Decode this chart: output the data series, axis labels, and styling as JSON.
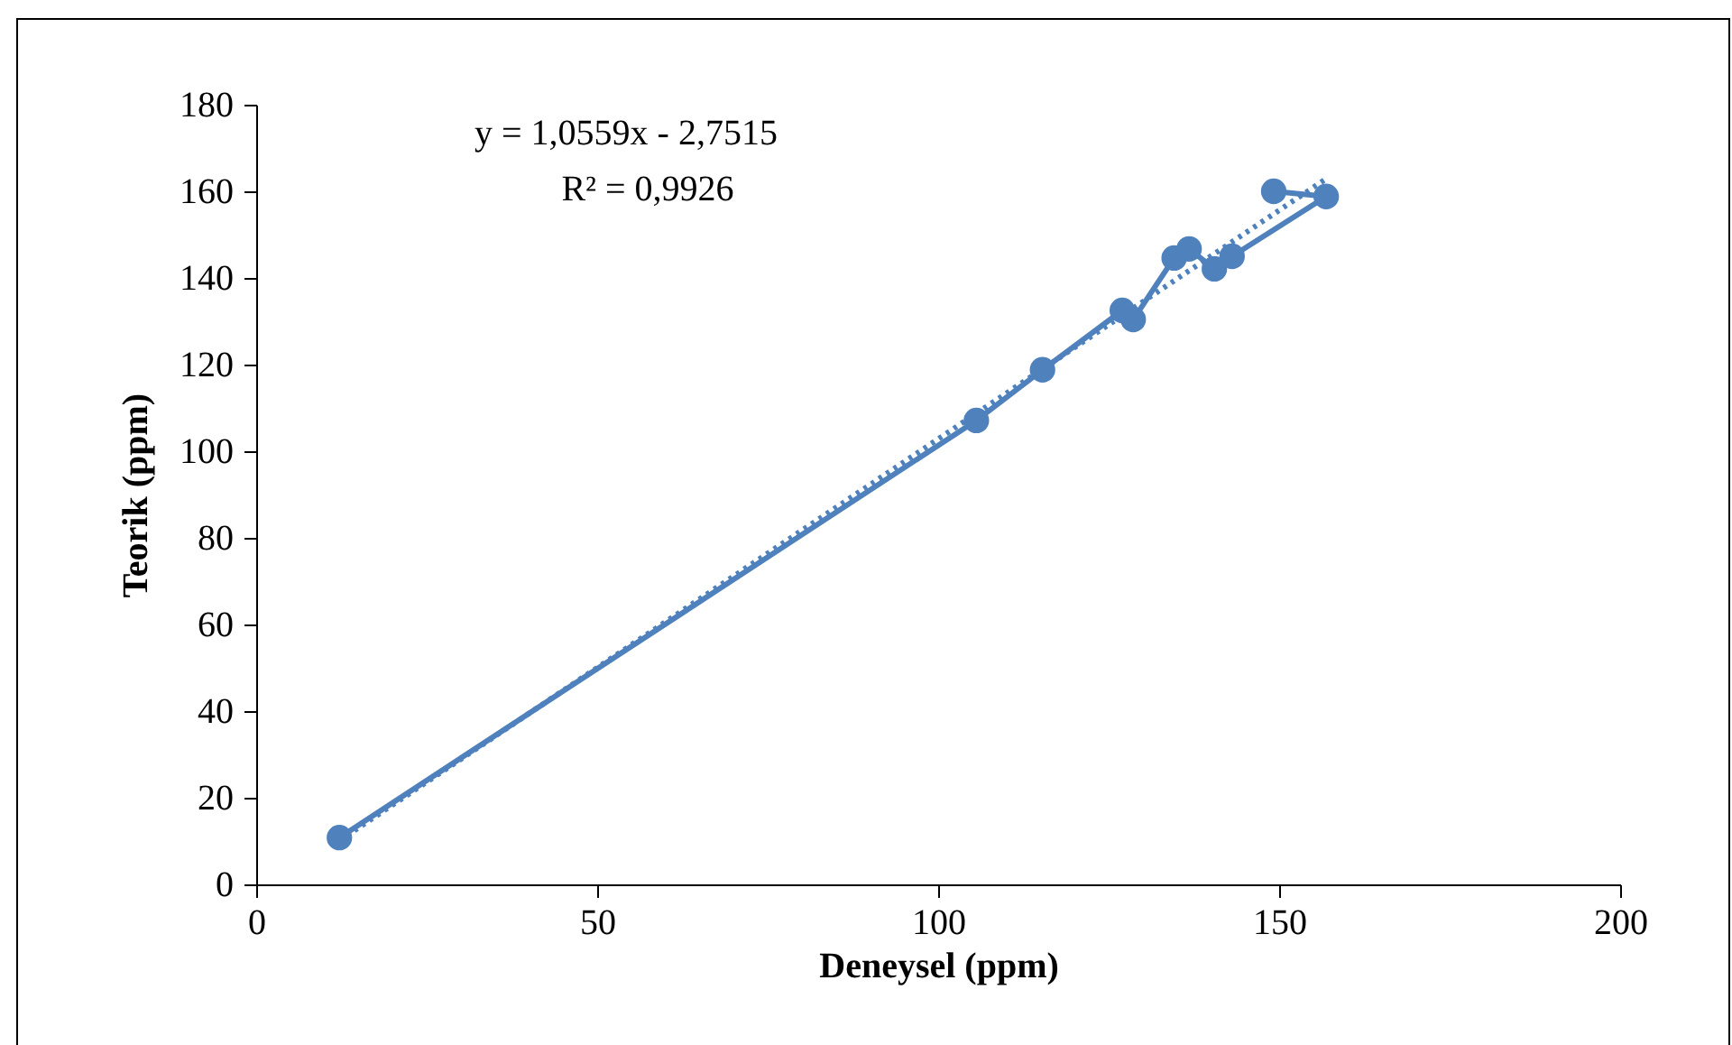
{
  "chart_data": {
    "type": "line",
    "xlabel": "Deneysel (ppm)",
    "ylabel": "Teorik (ppm)",
    "annotations": [
      "y = 1,0559x - 2,7515",
      "R² = 0,9926"
    ],
    "xlim": [
      0,
      200
    ],
    "xticks": [
      0,
      50,
      100,
      150,
      200
    ],
    "ylim": [
      0,
      180
    ],
    "yticks": [
      0,
      20,
      40,
      60,
      80,
      100,
      120,
      140,
      160,
      180
    ],
    "grid": false,
    "series": [
      {
        "marker": "circle",
        "line_style": "solid",
        "color": "#4f81bd",
        "x": [
          12.2,
          105.6,
          115.3,
          127.0,
          128.6,
          134.6,
          136.8,
          140.5,
          143.1,
          156.9,
          149.2
        ],
        "values": [
          10.8,
          107.1,
          118.8,
          132.5,
          130.4,
          144.6,
          146.7,
          142.1,
          145.0,
          158.8,
          160.0
        ]
      },
      {
        "marker": "none",
        "line_style": "dotted",
        "color": "#4f81bd",
        "x": [
          12.2,
          156.9
        ],
        "values": [
          10.1,
          162.9
        ]
      }
    ]
  }
}
